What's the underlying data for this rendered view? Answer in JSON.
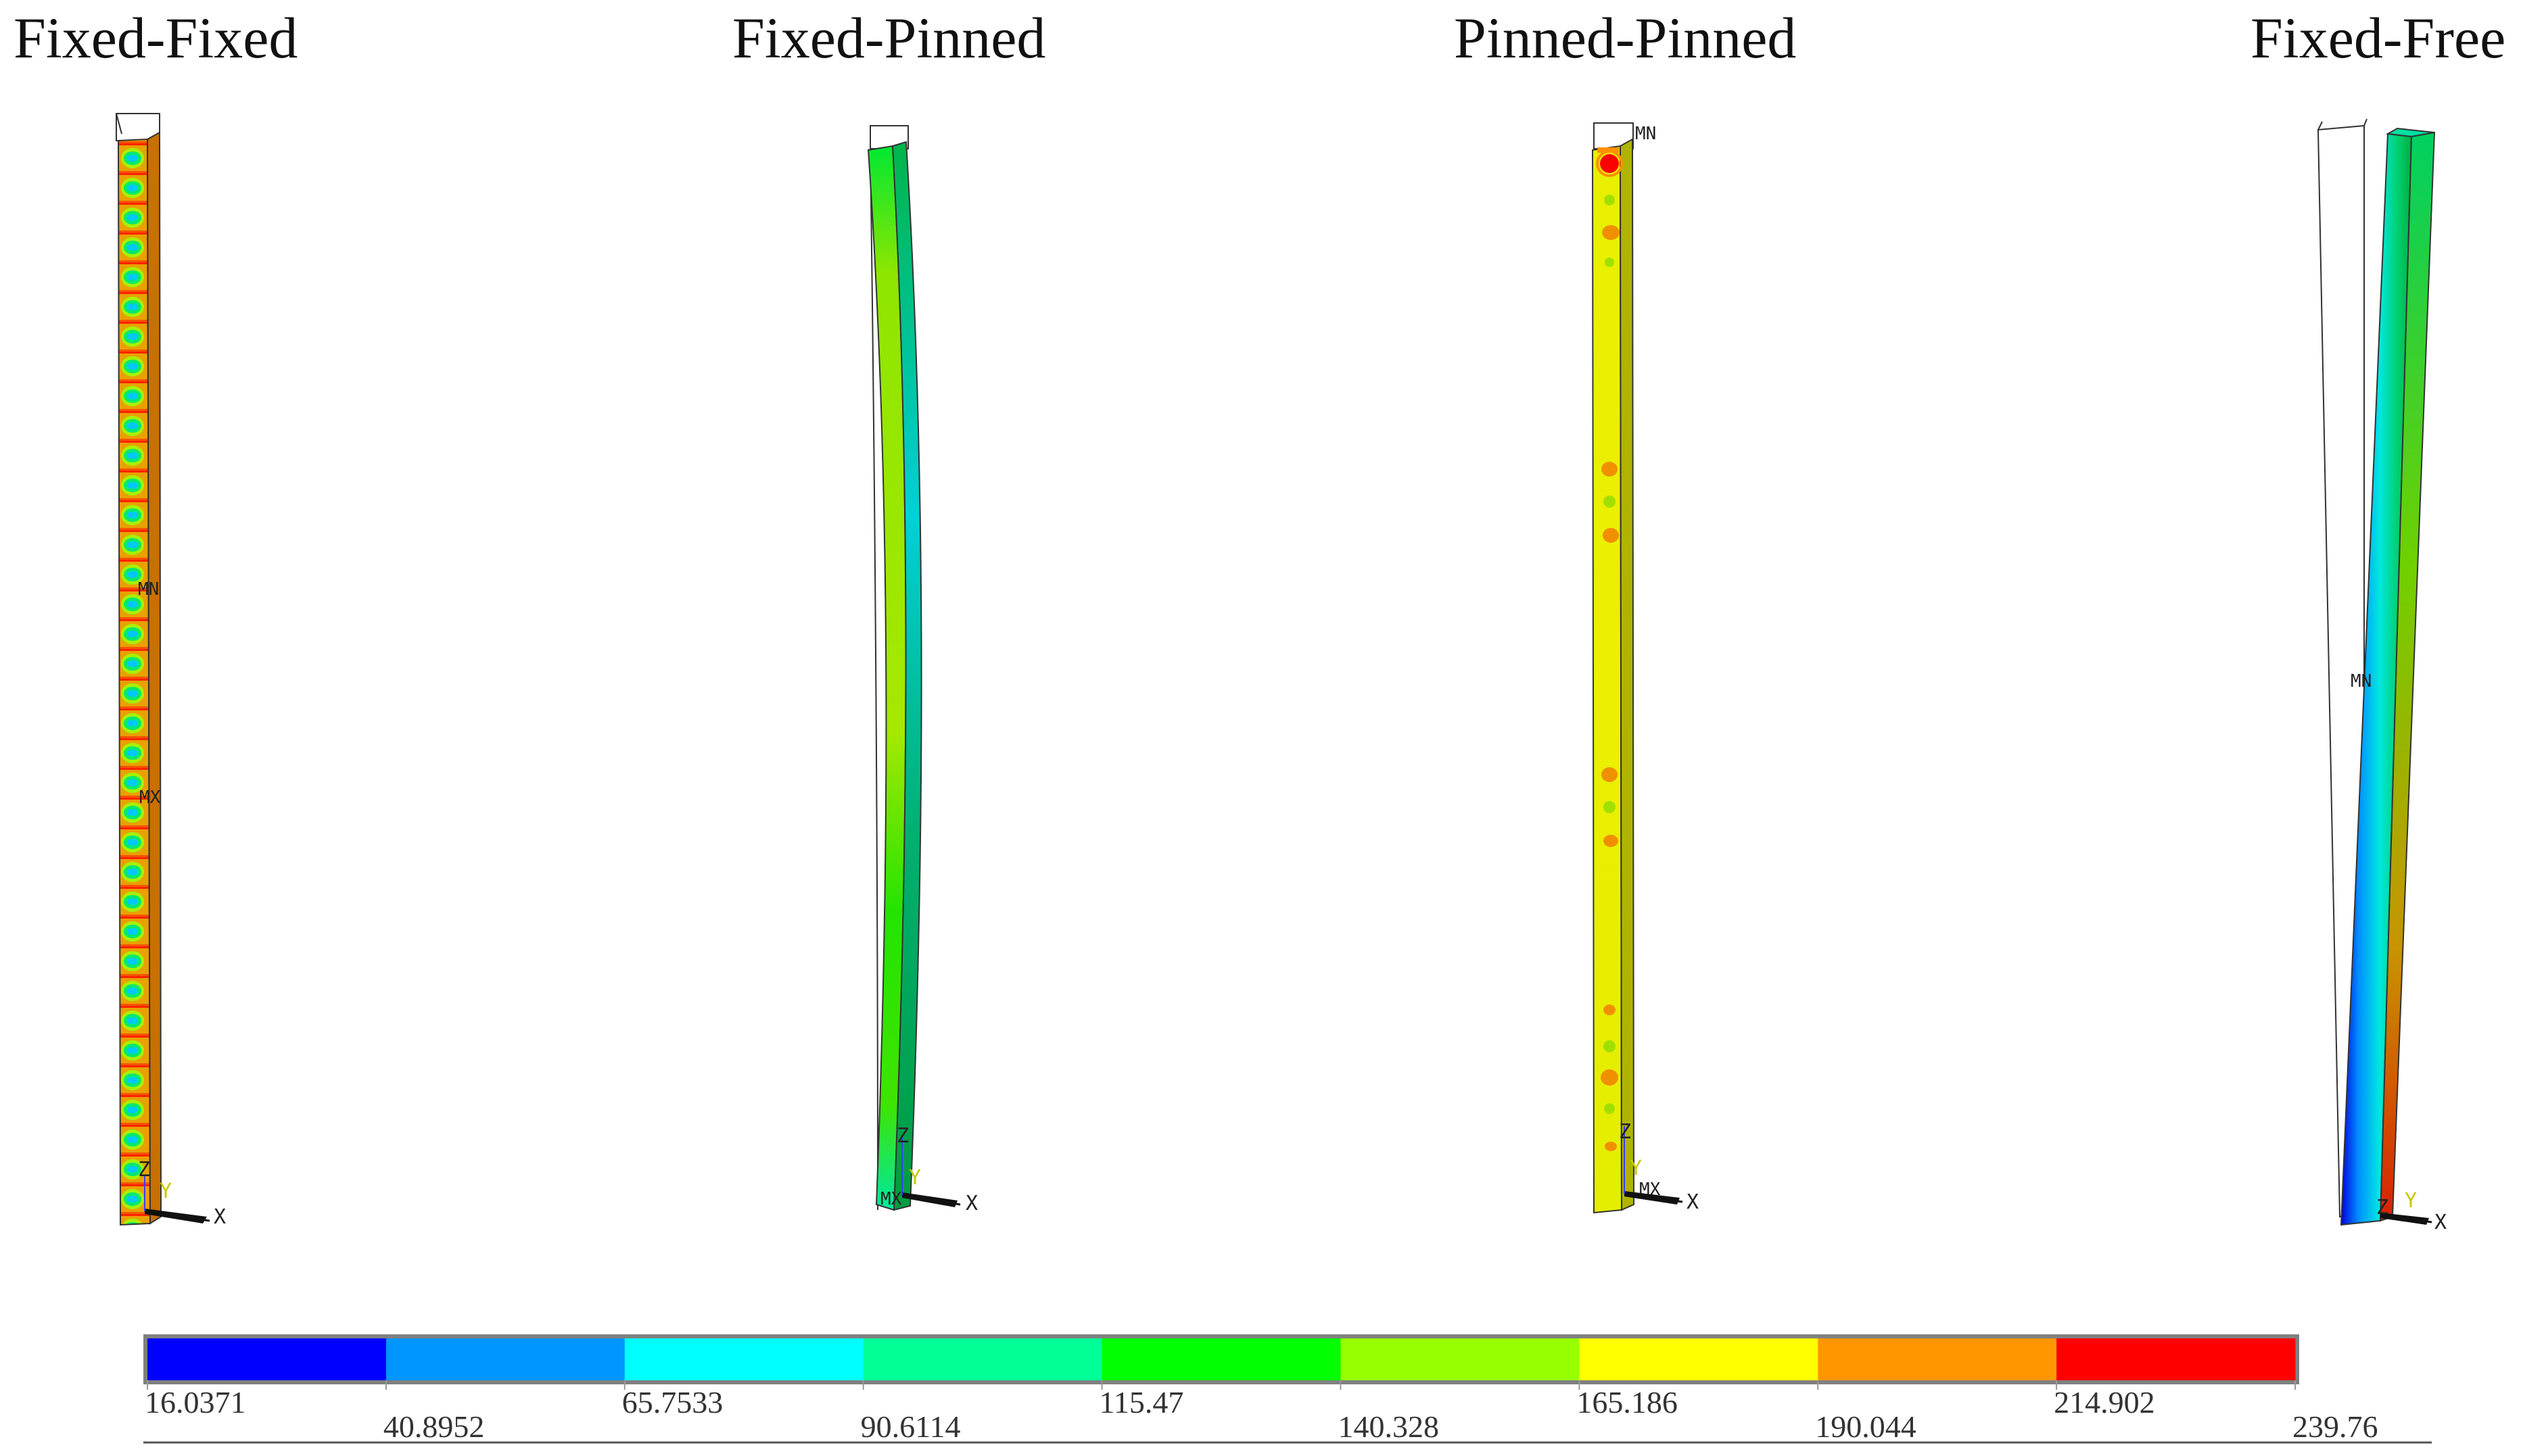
{
  "panels": [
    {
      "title": "Fixed-Fixed",
      "markers": [
        "MN",
        "MX"
      ],
      "axes": {
        "x": "X",
        "y": "Y",
        "z": "Z"
      }
    },
    {
      "title": "Fixed-Pinned",
      "markers": [
        "MX"
      ],
      "axes": {
        "x": "X",
        "y": "Y",
        "z": "Z"
      }
    },
    {
      "title": "Pinned-Pinned",
      "markers": [
        "MN",
        "MX"
      ],
      "axes": {
        "x": "X",
        "y": "Y",
        "z": "Z"
      }
    },
    {
      "title": "Fixed-Free",
      "markers": [
        "MN"
      ],
      "axes": {
        "x": "X",
        "y": "Y",
        "z": "Z"
      }
    }
  ],
  "legend": {
    "ticks": [
      "16.0371",
      "40.8952",
      "65.7533",
      "90.6114",
      "115.47",
      "140.328",
      "165.186",
      "190.044",
      "214.902",
      "239.76"
    ],
    "colors": [
      "#0000ff",
      "#0096ff",
      "#00ffff",
      "#00ff96",
      "#00ff00",
      "#96ff00",
      "#ffff00",
      "#ff9600",
      "#ff0000"
    ]
  }
}
